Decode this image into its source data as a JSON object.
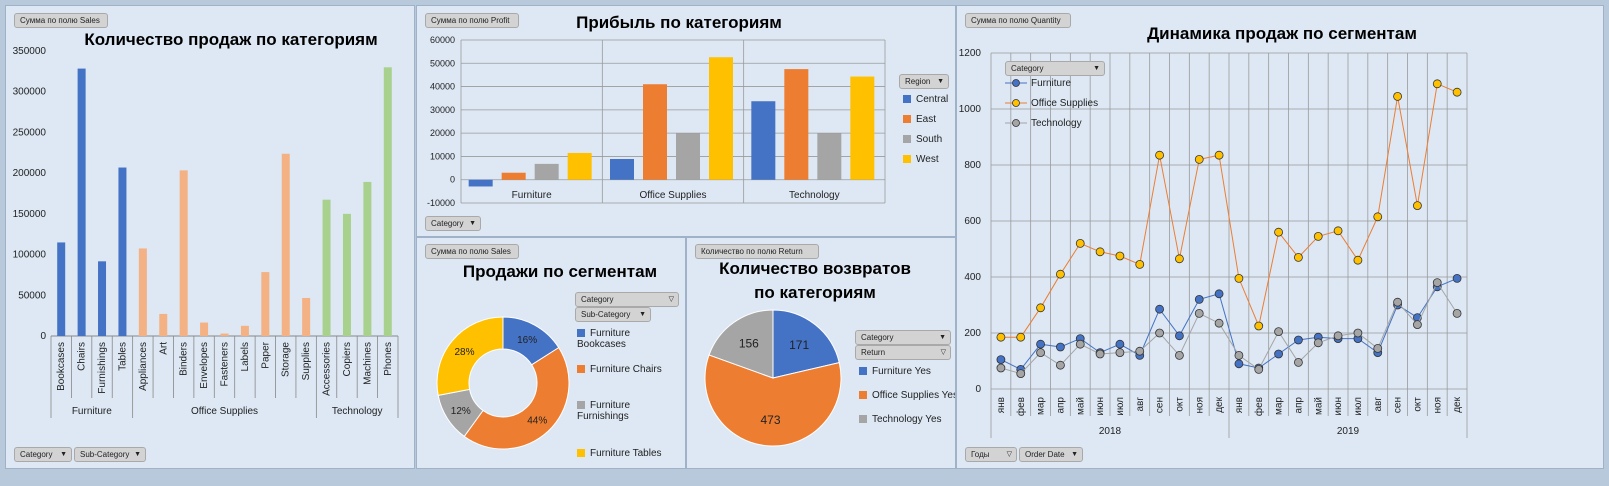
{
  "panel_sales_by_subcat": {
    "field_button": "Сумма по полю Sales",
    "bottom_buttons": [
      "Category",
      "Sub-Category"
    ],
    "chart_data": {
      "type": "bar",
      "title": "Количество продаж по категориям",
      "ylim": [
        0,
        350000
      ],
      "yticks": [
        0,
        50000,
        100000,
        150000,
        200000,
        250000,
        300000,
        350000
      ],
      "groups": [
        {
          "name": "Furniture",
          "color": "#4472c4",
          "categories": [
            "Bookcases",
            "Chairs",
            "Furnishings",
            "Tables"
          ],
          "values": [
            114900,
            328400,
            91700,
            206900
          ]
        },
        {
          "name": "Office Supplies",
          "color": "#f4b183",
          "categories": [
            "Appliances",
            "Art",
            "Binders",
            "Envelopes",
            "Fasteners",
            "Labels",
            "Paper",
            "Storage",
            "Supplies"
          ],
          "values": [
            107500,
            27100,
            203400,
            16500,
            3000,
            12500,
            78500,
            223800,
            46700
          ]
        },
        {
          "name": "Technology",
          "color": "#a9d18e",
          "categories": [
            "Accessories",
            "Copiers",
            "Machines",
            "Phones"
          ],
          "values": [
            167400,
            150000,
            189200,
            330000
          ]
        }
      ]
    }
  },
  "panel_profit": {
    "field_button": "Сумма по полю Profit",
    "bottom_button": "Category",
    "legend_button": "Region",
    "chart_data": {
      "type": "bar",
      "title": "Прибыль по категориям",
      "ylim": [
        -10000,
        60000
      ],
      "yticks": [
        -10000,
        0,
        10000,
        20000,
        30000,
        40000,
        50000,
        60000
      ],
      "categories": [
        "Furniture",
        "Office Supplies",
        "Technology"
      ],
      "series": [
        {
          "name": "Central",
          "color": "#4472c4",
          "values": [
            -2900,
            8900,
            33700
          ]
        },
        {
          "name": "East",
          "color": "#ed7d31",
          "values": [
            3000,
            41000,
            47500
          ]
        },
        {
          "name": "South",
          "color": "#a5a5a5",
          "values": [
            6800,
            19900,
            19900
          ]
        },
        {
          "name": "West",
          "color": "#ffc000",
          "values": [
            11500,
            52600,
            44300
          ]
        }
      ]
    }
  },
  "panel_segments": {
    "field_button": "Сумма по полю Sales",
    "filter_buttons": [
      "Category",
      "Sub-Category"
    ],
    "chart_data": {
      "type": "pie",
      "title": "Продажи по сегментам",
      "slices": [
        {
          "label": "Furniture Bookcases",
          "value": 16,
          "display": "16%",
          "color": "#4472c4"
        },
        {
          "label": "Furniture Chairs",
          "value": 44,
          "display": "44%",
          "color": "#ed7d31"
        },
        {
          "label": "Furniture Furnishings",
          "value": 12,
          "display": "12%",
          "color": "#a5a5a5"
        },
        {
          "label": "Furniture Tables",
          "value": 28,
          "display": "28%",
          "color": "#ffc000"
        }
      ]
    }
  },
  "panel_returns": {
    "field_button": "Количество по полю Return",
    "filter_buttons": [
      "Category",
      "Return"
    ],
    "chart_data": {
      "type": "pie",
      "title_line1": "Количество возвратов",
      "title_line2": "по категориям",
      "slices": [
        {
          "label": "Furniture Yes",
          "value": 171,
          "display": "171",
          "color": "#4472c4"
        },
        {
          "label": "Office Supplies Yes",
          "value": 473,
          "display": "473",
          "color": "#ed7d31"
        },
        {
          "label": "Technology Yes",
          "value": 156,
          "display": "156",
          "color": "#a5a5a5"
        }
      ]
    }
  },
  "panel_dynamics": {
    "field_button": "Сумма по полю Quantity",
    "legend_button": "Category",
    "bottom_buttons": [
      "Годы",
      "Order Date"
    ],
    "chart_data": {
      "type": "line",
      "title": "Динамика продаж по сегментам",
      "ylim": [
        0,
        1200
      ],
      "yticks": [
        0,
        200,
        400,
        600,
        800,
        1000,
        1200
      ],
      "months": [
        "янв",
        "фев",
        "мар",
        "апр",
        "май",
        "июн",
        "июл",
        "авг",
        "сен",
        "окт",
        "ноя",
        "дек",
        "янв",
        "фев",
        "мар",
        "апр",
        "май",
        "июн",
        "июл",
        "авг",
        "сен",
        "окт",
        "ноя",
        "дек"
      ],
      "years": [
        "2018",
        "2019"
      ],
      "series": [
        {
          "name": "Furniture",
          "color": "#4472c4",
          "values": [
            105,
            70,
            160,
            150,
            180,
            130,
            160,
            120,
            285,
            190,
            320,
            340,
            90,
            75,
            125,
            175,
            185,
            180,
            180,
            130,
            300,
            255,
            365,
            395
          ]
        },
        {
          "name": "Office Supplies",
          "color": "#ffc000",
          "line": "#ed7d31",
          "values": [
            185,
            185,
            290,
            410,
            520,
            490,
            475,
            445,
            835,
            465,
            820,
            835,
            395,
            225,
            560,
            470,
            545,
            565,
            460,
            615,
            1045,
            655,
            1090,
            1060
          ]
        },
        {
          "name": "Technology",
          "color": "#a5a5a5",
          "values": [
            75,
            55,
            130,
            85,
            160,
            125,
            130,
            135,
            200,
            120,
            270,
            235,
            120,
            70,
            205,
            95,
            165,
            190,
            200,
            145,
            310,
            230,
            380,
            270
          ]
        }
      ]
    }
  }
}
